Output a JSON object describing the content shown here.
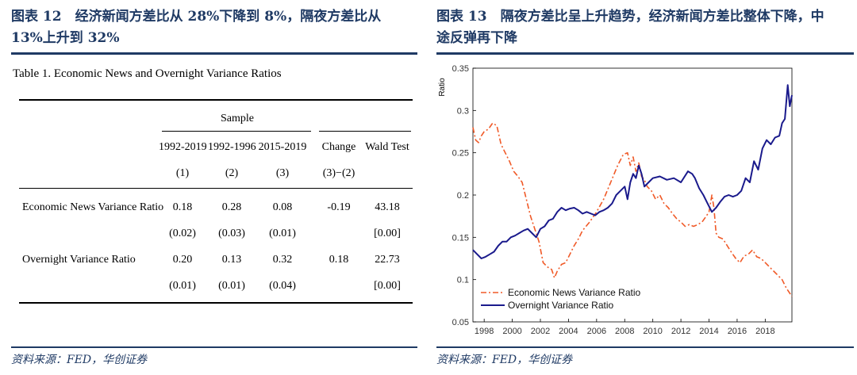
{
  "left_figure": {
    "title": "图表 12　经济新闻方差比从 28%下降到 8%，隔夜方差比从 13%上升到 32%",
    "caption": "Table 1. Economic News and Overnight Variance Ratios",
    "table": {
      "group_header": "Sample",
      "columns": [
        "1992-2019",
        "1992-1996",
        "2015-2019",
        "Change",
        "Wald Test"
      ],
      "column_index": [
        "(1)",
        "(2)",
        "(3)",
        "(3)−(2)",
        ""
      ],
      "rows": [
        {
          "label": "Economic News Variance Ratio",
          "values": [
            "0.18",
            "0.28",
            "0.08",
            "-0.19",
            "43.18"
          ],
          "se": [
            "(0.02)",
            "(0.03)",
            "(0.01)",
            "",
            "[0.00]"
          ]
        },
        {
          "label": "Overnight Variance Ratio",
          "values": [
            "0.20",
            "0.13",
            "0.32",
            "0.18",
            "22.73"
          ],
          "se": [
            "(0.01)",
            "(0.01)",
            "(0.04)",
            "",
            "[0.00]"
          ]
        }
      ]
    },
    "source": "资料来源：FED，华创证券"
  },
  "right_figure": {
    "title": "图表 13　隔夜方差比呈上升趋势，经济新闻方差比整体下降，中途反弹再下降",
    "source": "资料来源：FED，华创证券"
  },
  "chart_data": {
    "type": "line",
    "title": "",
    "xlabel": "",
    "ylabel": "Ratio",
    "xlim": [
      1997.2,
      2019.9
    ],
    "ylim": [
      0.05,
      0.35
    ],
    "xticks": [
      1998,
      2000,
      2002,
      2004,
      2006,
      2008,
      2010,
      2012,
      2014,
      2016,
      2018
    ],
    "yticks": [
      0.05,
      0.1,
      0.15,
      0.2,
      0.25,
      0.3,
      0.35
    ],
    "ytick_labels": [
      "0.05",
      "0.1",
      "0.15",
      "0.2",
      "0.25",
      "0.3",
      "0.35"
    ],
    "legend_position": "bottom-left",
    "series": [
      {
        "name": "Economic News Variance Ratio",
        "color": "#f05a28",
        "style": "dashdot",
        "x": [
          1997.2,
          1997.4,
          1997.6,
          1997.8,
          1998.0,
          1998.3,
          1998.6,
          1998.9,
          1999.2,
          1999.5,
          1999.8,
          2000.1,
          2000.4,
          2000.7,
          2001.0,
          2001.3,
          2001.6,
          2001.9,
          2002.2,
          2002.5,
          2002.8,
          2003.0,
          2003.2,
          2003.5,
          2003.8,
          2004.1,
          2004.4,
          2004.7,
          2005.0,
          2005.5,
          2006.0,
          2006.5,
          2007.0,
          2007.5,
          2007.9,
          2008.2,
          2008.4,
          2008.6,
          2008.8,
          2009.0,
          2009.2,
          2009.4,
          2009.6,
          2009.9,
          2010.2,
          2010.5,
          2010.8,
          2011.1,
          2011.4,
          2011.7,
          2012.0,
          2012.3,
          2012.6,
          2012.9,
          2013.2,
          2013.5,
          2013.8,
          2014.0,
          2014.2,
          2014.35,
          2014.5,
          2014.7,
          2015.0,
          2015.3,
          2015.6,
          2015.9,
          2016.2,
          2016.5,
          2016.8,
          2017.1,
          2017.4,
          2017.7,
          2018.0,
          2018.3,
          2018.6,
          2018.9,
          2019.2,
          2019.5,
          2019.7,
          2019.9
        ],
        "values": [
          0.28,
          0.265,
          0.262,
          0.27,
          0.275,
          0.278,
          0.285,
          0.282,
          0.26,
          0.25,
          0.24,
          0.228,
          0.222,
          0.215,
          0.195,
          0.175,
          0.16,
          0.145,
          0.12,
          0.115,
          0.112,
          0.102,
          0.11,
          0.118,
          0.12,
          0.13,
          0.14,
          0.148,
          0.158,
          0.168,
          0.18,
          0.195,
          0.215,
          0.235,
          0.248,
          0.25,
          0.235,
          0.245,
          0.228,
          0.238,
          0.222,
          0.218,
          0.21,
          0.205,
          0.195,
          0.2,
          0.19,
          0.185,
          0.178,
          0.172,
          0.168,
          0.163,
          0.165,
          0.163,
          0.165,
          0.168,
          0.175,
          0.18,
          0.2,
          0.185,
          0.155,
          0.15,
          0.148,
          0.14,
          0.132,
          0.125,
          0.12,
          0.128,
          0.13,
          0.135,
          0.127,
          0.125,
          0.12,
          0.115,
          0.11,
          0.105,
          0.1,
          0.09,
          0.085,
          0.08
        ]
      },
      {
        "name": "Overnight Variance Ratio",
        "color": "#1a1a8c",
        "style": "solid",
        "x": [
          1997.2,
          1997.5,
          1997.8,
          1998.1,
          1998.4,
          1998.7,
          1999.0,
          1999.3,
          1999.6,
          1999.9,
          2000.2,
          2000.5,
          2000.8,
          2001.1,
          2001.4,
          2001.7,
          2002.0,
          2002.3,
          2002.6,
          2002.9,
          2003.2,
          2003.5,
          2003.8,
          2004.1,
          2004.4,
          2004.7,
          2005.0,
          2005.3,
          2005.6,
          2005.9,
          2006.2,
          2006.5,
          2006.8,
          2007.1,
          2007.4,
          2007.7,
          2008.0,
          2008.2,
          2008.4,
          2008.6,
          2008.8,
          2009.0,
          2009.2,
          2009.4,
          2009.7,
          2010.0,
          2010.5,
          2011.0,
          2011.5,
          2012.0,
          2012.5,
          2012.8,
          2013.0,
          2013.3,
          2013.6,
          2013.9,
          2014.2,
          2014.5,
          2014.8,
          2015.1,
          2015.4,
          2015.7,
          2016.0,
          2016.3,
          2016.6,
          2016.9,
          2017.2,
          2017.5,
          2017.8,
          2018.1,
          2018.4,
          2018.7,
          2019.0,
          2019.2,
          2019.4,
          2019.6,
          2019.75,
          2019.9
        ],
        "values": [
          0.135,
          0.13,
          0.125,
          0.127,
          0.13,
          0.133,
          0.14,
          0.145,
          0.145,
          0.15,
          0.152,
          0.155,
          0.158,
          0.16,
          0.155,
          0.15,
          0.16,
          0.163,
          0.17,
          0.172,
          0.18,
          0.185,
          0.182,
          0.184,
          0.185,
          0.182,
          0.178,
          0.18,
          0.178,
          0.176,
          0.18,
          0.182,
          0.185,
          0.19,
          0.2,
          0.205,
          0.21,
          0.195,
          0.215,
          0.225,
          0.22,
          0.235,
          0.225,
          0.21,
          0.215,
          0.22,
          0.222,
          0.218,
          0.22,
          0.215,
          0.228,
          0.225,
          0.22,
          0.208,
          0.2,
          0.19,
          0.18,
          0.185,
          0.192,
          0.198,
          0.2,
          0.198,
          0.2,
          0.205,
          0.22,
          0.215,
          0.24,
          0.23,
          0.255,
          0.265,
          0.26,
          0.268,
          0.27,
          0.285,
          0.29,
          0.33,
          0.305,
          0.318
        ]
      }
    ]
  }
}
